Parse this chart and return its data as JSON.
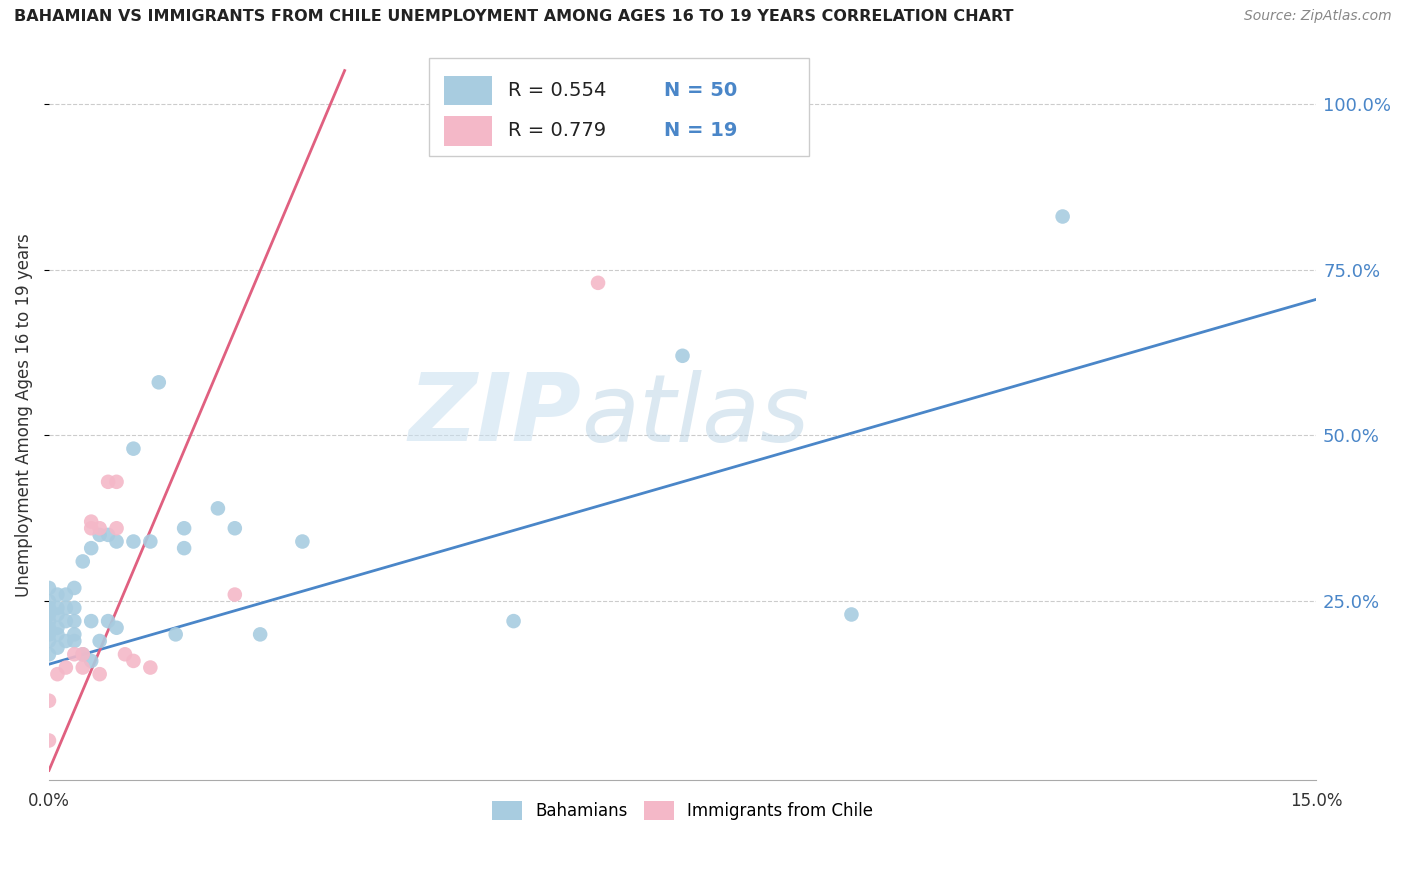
{
  "title": "BAHAMIAN VS IMMIGRANTS FROM CHILE UNEMPLOYMENT AMONG AGES 16 TO 19 YEARS CORRELATION CHART",
  "source": "Source: ZipAtlas.com",
  "ylabel": "Unemployment Among Ages 16 to 19 years",
  "xlim": [
    0.0,
    0.15
  ],
  "ylim": [
    -0.02,
    1.08
  ],
  "ytick_vals": [
    0.25,
    0.5,
    0.75,
    1.0
  ],
  "ytick_labels": [
    "25.0%",
    "50.0%",
    "75.0%",
    "100.0%"
  ],
  "xtick_vals": [
    0.0,
    0.015,
    0.03,
    0.045,
    0.06,
    0.075,
    0.09,
    0.105,
    0.12,
    0.135,
    0.15
  ],
  "xtick_labels": [
    "0.0%",
    "",
    "",
    "",
    "",
    "",
    "",
    "",
    "",
    "",
    "15.0%"
  ],
  "blue_color": "#a8cce0",
  "pink_color": "#f4b8c8",
  "blue_line_color": "#4a86c8",
  "pink_line_color": "#e06080",
  "r_blue": 0.554,
  "n_blue": 50,
  "r_pink": 0.779,
  "n_pink": 19,
  "watermark": "ZIPatlas",
  "blue_line_x0": 0.0,
  "blue_line_y0": 0.155,
  "blue_line_x1": 0.15,
  "blue_line_y1": 0.705,
  "pink_line_x0": 0.0,
  "pink_line_y0": -0.005,
  "pink_line_x1": 0.035,
  "pink_line_y1": 1.05,
  "blue_points_x": [
    0.0,
    0.0,
    0.0,
    0.0,
    0.0,
    0.0,
    0.0,
    0.0,
    0.0,
    0.001,
    0.001,
    0.001,
    0.001,
    0.001,
    0.001,
    0.002,
    0.002,
    0.002,
    0.002,
    0.003,
    0.003,
    0.003,
    0.003,
    0.003,
    0.004,
    0.004,
    0.005,
    0.005,
    0.005,
    0.006,
    0.006,
    0.007,
    0.007,
    0.008,
    0.008,
    0.01,
    0.01,
    0.012,
    0.013,
    0.015,
    0.016,
    0.016,
    0.02,
    0.022,
    0.025,
    0.03,
    0.055,
    0.075,
    0.095,
    0.12
  ],
  "blue_points_y": [
    0.17,
    0.19,
    0.2,
    0.21,
    0.22,
    0.23,
    0.24,
    0.25,
    0.27,
    0.18,
    0.2,
    0.21,
    0.23,
    0.24,
    0.26,
    0.19,
    0.22,
    0.24,
    0.26,
    0.19,
    0.2,
    0.22,
    0.24,
    0.27,
    0.17,
    0.31,
    0.16,
    0.22,
    0.33,
    0.19,
    0.35,
    0.22,
    0.35,
    0.21,
    0.34,
    0.34,
    0.48,
    0.34,
    0.58,
    0.2,
    0.33,
    0.36,
    0.39,
    0.36,
    0.2,
    0.34,
    0.22,
    0.62,
    0.23,
    0.83
  ],
  "pink_points_x": [
    0.0,
    0.0,
    0.001,
    0.002,
    0.003,
    0.004,
    0.004,
    0.005,
    0.005,
    0.006,
    0.006,
    0.007,
    0.008,
    0.008,
    0.009,
    0.01,
    0.012,
    0.022,
    0.065
  ],
  "pink_points_y": [
    0.04,
    0.1,
    0.14,
    0.15,
    0.17,
    0.15,
    0.17,
    0.36,
    0.37,
    0.14,
    0.36,
    0.43,
    0.36,
    0.43,
    0.17,
    0.16,
    0.15,
    0.26,
    0.73
  ]
}
